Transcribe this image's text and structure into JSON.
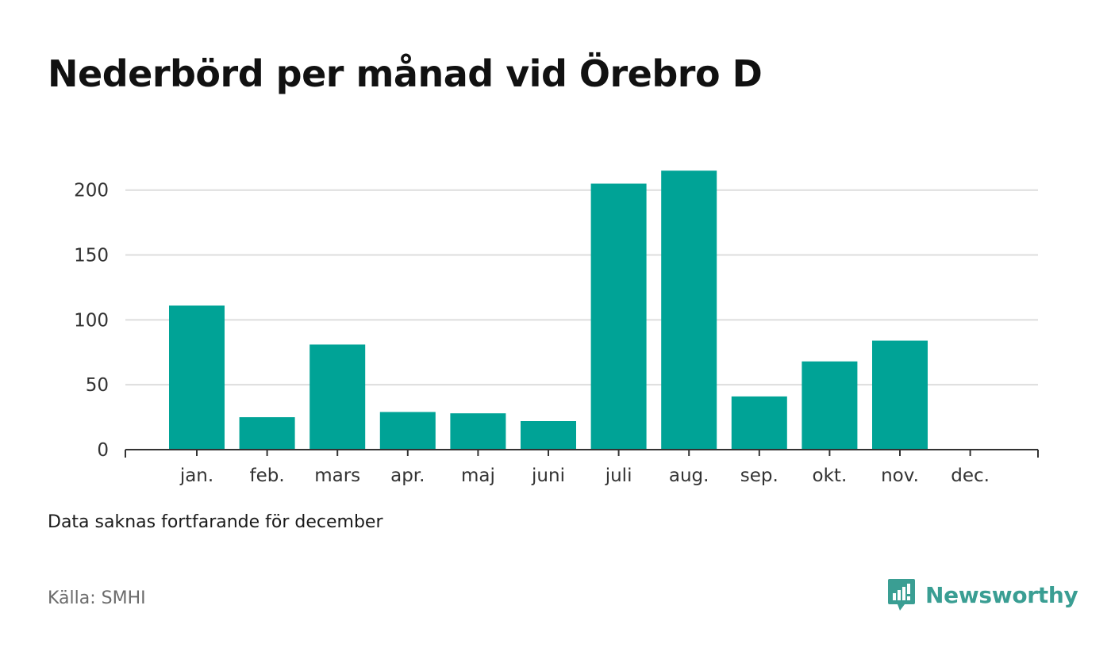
{
  "title": "Nederbörd per månad vid Örebro D",
  "note": "Data saknas fortfarande för december",
  "source": "Källa: SMHI",
  "brand": {
    "name": "Newsworthy",
    "icon": "newsworthy-logo-icon"
  },
  "colors": {
    "bar": "#00a396",
    "grid": "#dddddd",
    "axis": "#333333",
    "tick_text": "#333333",
    "brand": "#3a9e93"
  },
  "chart_data": {
    "type": "bar",
    "categories": [
      "jan.",
      "feb.",
      "mars",
      "apr.",
      "maj",
      "juni",
      "juli",
      "aug.",
      "sep.",
      "okt.",
      "nov.",
      "dec."
    ],
    "values": [
      111,
      25,
      81,
      29,
      28,
      22,
      205,
      215,
      41,
      68,
      84,
      null
    ],
    "ylim": [
      0,
      220
    ],
    "yticks": [
      0,
      50,
      100,
      150,
      200
    ],
    "grid": true,
    "xlabel": "",
    "ylabel": ""
  }
}
